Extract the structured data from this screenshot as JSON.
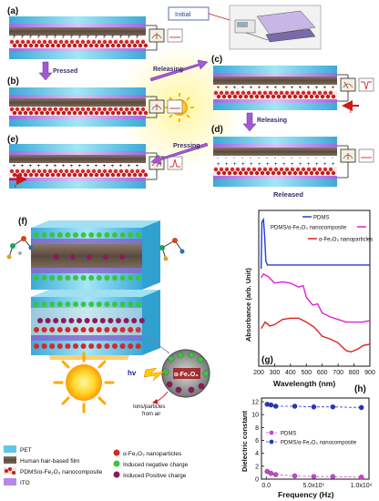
{
  "panels": {
    "a": "(a)",
    "b": "(b)",
    "c": "(c)",
    "d": "(d)",
    "e": "(e)",
    "f": "(f)",
    "g": "(g)",
    "h": "(h)"
  },
  "flow": {
    "initial": "Initial",
    "pressed": "Pressed",
    "releasing_top": "Releasing",
    "releasing_side": "Releasing",
    "pressing": "Pressing",
    "released": "Released",
    "current_label_c": "i",
    "current_label_e": "i"
  },
  "device": {
    "hv": "hv",
    "ions": "Ions/particles",
    "ions2": "from air",
    "oxide": "α-Fe₂O₃"
  },
  "legend": {
    "materials": [
      "PET",
      "Human hair-based film",
      "PDMS/α-Fe₂O₃ nanocomposite",
      "ITO"
    ],
    "particles": [
      "α-Fe₂O₃ nanoparticles",
      "Induced negative charge",
      "Induced Positive charge"
    ],
    "colors": {
      "pet": "#5fc8e8",
      "hair": "#6b5848",
      "pdms": "#b03a3a",
      "ito": "#b48ae6",
      "fe": "#d62828",
      "neg": "#3cc43c",
      "pos": "#8b1a5a"
    }
  },
  "chart_data": [
    {
      "type": "line",
      "panel": "(g)",
      "xlabel": "Wavelength (nm)",
      "ylabel": "Absorbance (arb. Unit)",
      "xlim": [
        200,
        900
      ],
      "xticks": [
        200,
        300,
        400,
        500,
        600,
        700,
        800,
        900
      ],
      "legend_position": "top-right",
      "series": [
        {
          "name": "PDMS",
          "color": "#1f3fd6",
          "x": [
            215,
            220,
            230,
            238,
            245,
            255,
            270,
            300,
            400,
            500,
            600,
            700,
            800,
            900
          ],
          "y": [
            6.0,
            9.6,
            9.8,
            8.4,
            6.6,
            6.3,
            6.3,
            6.3,
            6.3,
            6.3,
            6.3,
            6.3,
            6.3,
            6.3
          ]
        },
        {
          "name": "PDMS/α-Fe₂O₃ nanocomposite",
          "color": "#e020d8",
          "x": [
            215,
            230,
            260,
            300,
            350,
            400,
            450,
            480,
            500,
            540,
            570,
            600,
            650,
            700,
            750,
            800,
            850,
            900
          ],
          "y": [
            5.3,
            5.6,
            5.4,
            4.9,
            5.0,
            4.9,
            4.6,
            4.7,
            3.8,
            3.2,
            3.3,
            2.6,
            2.3,
            2.1,
            1.9,
            1.9,
            1.9,
            2.0
          ]
        },
        {
          "name": "α-Fe₂O₃ nanoparticles",
          "color": "#e02020",
          "x": [
            215,
            240,
            270,
            300,
            350,
            400,
            450,
            500,
            550,
            600,
            650,
            700,
            750,
            780,
            820,
            860,
            900
          ],
          "y": [
            1.4,
            1.9,
            1.6,
            1.7,
            2.1,
            2.2,
            2.2,
            1.9,
            1.5,
            0.8,
            0.6,
            0.3,
            -0.3,
            -0.4,
            -0.2,
            0.1,
            0.2
          ]
        }
      ]
    },
    {
      "type": "line",
      "panel": "(h)",
      "xlabel": "Frequency (Hz)",
      "ylabel": "Dielectric constant",
      "xlim": [
        0,
        1000000
      ],
      "ylim": [
        0,
        12
      ],
      "xtick_labels": [
        "0.0",
        "5.0x10⁵",
        "1.0x10⁶"
      ],
      "xtick_values": [
        0,
        500000,
        1000000
      ],
      "yticks": [
        0,
        2,
        4,
        6,
        8,
        10,
        12
      ],
      "legend_position": "center",
      "series": [
        {
          "name": "PDMS",
          "color": "#d040d8",
          "x": [
            10000,
            50000,
            100000,
            300000,
            500000,
            700000,
            1000000
          ],
          "y": [
            1.2,
            0.9,
            0.7,
            0.5,
            0.4,
            0.4,
            0.3
          ]
        },
        {
          "name": "PDMS/α-Fe₂O₃ nanocomposite",
          "color": "#2038c8",
          "x": [
            10000,
            50000,
            100000,
            300000,
            500000,
            700000,
            1000000
          ],
          "y": [
            11.6,
            11.5,
            11.3,
            11.3,
            11.2,
            11.2,
            11.1
          ]
        }
      ]
    }
  ]
}
